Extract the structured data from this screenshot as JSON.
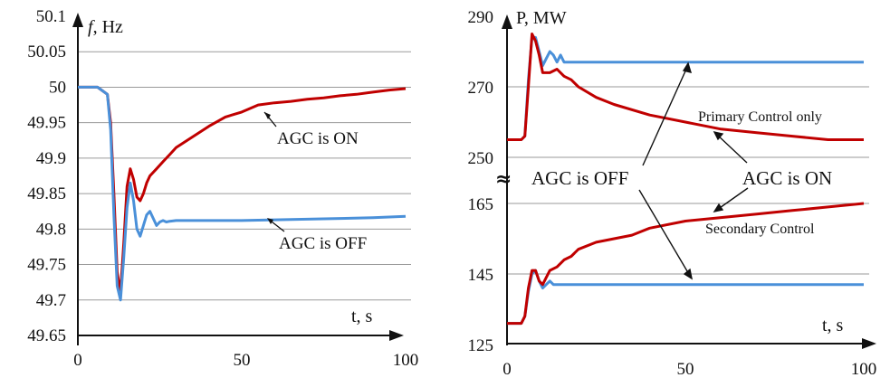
{
  "chart_data": [
    {
      "type": "line",
      "title": "",
      "ylabel_symbol": "f",
      "ylabel_unit": ", Hz",
      "xlabel": "t, s",
      "xlim": [
        0,
        100
      ],
      "ylim": [
        49.65,
        50.1
      ],
      "x_ticks": [
        "0",
        "50",
        "100"
      ],
      "y_ticks": [
        "50.1",
        "50.05",
        "50",
        "49.95",
        "49.9",
        "49.85",
        "49.8",
        "49.75",
        "49.7",
        "49.65"
      ],
      "grid": true,
      "series": [
        {
          "color": "#c00000",
          "x": [
            0,
            6,
            9,
            10,
            11,
            12,
            13,
            14,
            15,
            16,
            17,
            18,
            19,
            20,
            21,
            22,
            24,
            26,
            28,
            30,
            35,
            40,
            45,
            50,
            55,
            60,
            65,
            70,
            75,
            80,
            85,
            90,
            95,
            100
          ],
          "y": [
            50.0,
            50.0,
            49.99,
            49.95,
            49.85,
            49.74,
            49.71,
            49.78,
            49.86,
            49.885,
            49.87,
            49.845,
            49.84,
            49.85,
            49.865,
            49.875,
            49.885,
            49.895,
            49.905,
            49.915,
            49.93,
            49.945,
            49.958,
            49.965,
            49.975,
            49.978,
            49.98,
            49.983,
            49.985,
            49.988,
            49.99,
            49.993,
            49.996,
            49.998
          ]
        },
        {
          "color": "#4a90d9",
          "x": [
            0,
            6,
            9,
            10,
            11,
            12,
            13,
            14,
            15,
            16,
            17,
            18,
            19,
            20,
            21,
            22,
            23,
            24,
            25,
            26,
            27,
            28,
            30,
            35,
            40,
            50,
            60,
            70,
            80,
            90,
            100
          ],
          "y": [
            50.0,
            50.0,
            49.99,
            49.94,
            49.82,
            49.72,
            49.7,
            49.76,
            49.83,
            49.865,
            49.84,
            49.8,
            49.79,
            49.805,
            49.82,
            49.825,
            49.815,
            49.805,
            49.81,
            49.812,
            49.81,
            49.811,
            49.812,
            49.812,
            49.812,
            49.812,
            49.813,
            49.814,
            49.815,
            49.816,
            49.818
          ]
        }
      ],
      "annotations": [
        "AGC is ON",
        "AGC is OFF"
      ]
    },
    {
      "type": "line",
      "title": "",
      "ylabel": "P, MW",
      "xlabel": "t, s",
      "xlim": [
        0,
        100
      ],
      "y_ticks": [
        "290",
        "270",
        "250",
        "165",
        "145",
        "125"
      ],
      "x_ticks": [
        "0",
        "50",
        "100"
      ],
      "axis_break_symbol": "≈",
      "grid": true,
      "series": [
        {
          "color": "#4a90d9",
          "x": [
            0,
            4,
            5,
            6,
            7,
            8,
            9,
            10,
            11,
            12,
            13,
            14,
            15,
            16,
            20,
            30,
            40,
            50,
            60,
            70,
            80,
            90,
            100
          ],
          "y": [
            255,
            255,
            256,
            272,
            284,
            284,
            280,
            276,
            278,
            280,
            279,
            277,
            279,
            277,
            277,
            277,
            277,
            277,
            277,
            277,
            277,
            277,
            277
          ]
        },
        {
          "color": "#c00000",
          "x": [
            0,
            4,
            5,
            6,
            7,
            8,
            9,
            10,
            12,
            14,
            16,
            18,
            20,
            25,
            30,
            40,
            50,
            60,
            70,
            80,
            90,
            100
          ],
          "y": [
            255,
            255,
            256,
            270,
            285,
            283,
            279,
            274,
            274,
            275,
            273,
            272,
            270,
            267,
            265,
            262,
            260,
            258,
            257,
            256,
            255,
            255
          ]
        },
        {
          "color": "#4a90d9",
          "x": [
            0,
            4,
            5,
            6,
            7,
            8,
            9,
            10,
            11,
            12,
            13,
            14,
            15,
            20,
            30,
            40,
            50,
            60,
            70,
            80,
            90,
            100
          ],
          "y": [
            131,
            131,
            133,
            140,
            145,
            146,
            143,
            141,
            142,
            143,
            142,
            142,
            142,
            142,
            142,
            142,
            142,
            142,
            142,
            142,
            142,
            142
          ]
        },
        {
          "color": "#c00000",
          "x": [
            0,
            4,
            5,
            6,
            7,
            8,
            9,
            10,
            11,
            12,
            14,
            16,
            18,
            20,
            25,
            30,
            35,
            40,
            50,
            60,
            70,
            80,
            90,
            100
          ],
          "y": [
            131,
            131,
            133,
            141,
            146,
            146,
            143,
            142,
            144,
            146,
            147,
            149,
            150,
            152,
            154,
            155,
            156,
            158,
            160,
            161,
            162,
            163,
            164,
            165
          ]
        }
      ],
      "annotations": [
        "Primary Control only",
        "AGC is OFF",
        "AGC is ON",
        "Secondary Control"
      ]
    }
  ]
}
